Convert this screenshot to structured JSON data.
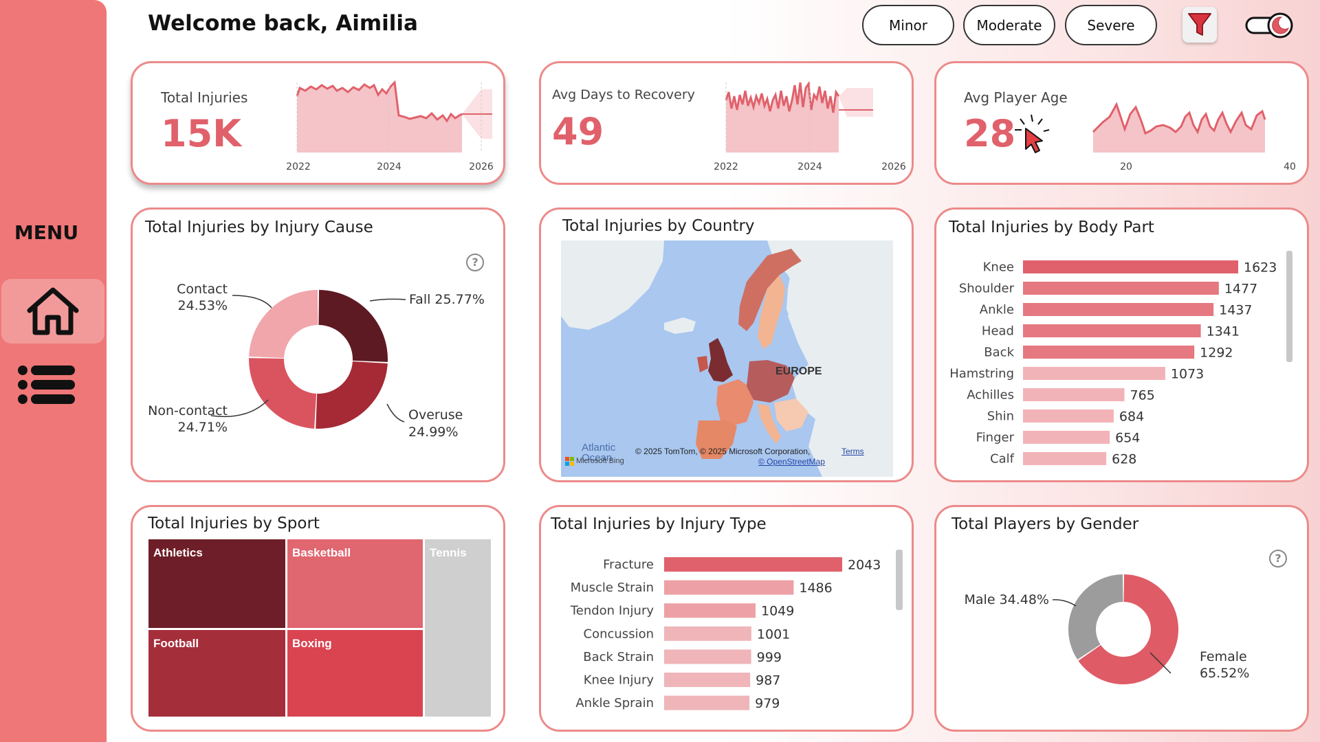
{
  "sidebar": {
    "menu_label": "MENU",
    "home_icon": "home-icon",
    "list_icon": "list-icon"
  },
  "header": {
    "welcome": "Welcome back, Aimilia",
    "severity_buttons": [
      "Minor",
      "Moderate",
      "Severe"
    ],
    "filter_icon": "filter-icon",
    "toggle_icon": "dark-mode-toggle-icon"
  },
  "kpis": {
    "total_injuries": {
      "label": "Total Injuries",
      "value": "15K",
      "ticks": [
        "2022",
        "2024",
        "2026"
      ]
    },
    "avg_days": {
      "label": "Avg Days to Recovery",
      "value": "49",
      "ticks": [
        "2022",
        "2024",
        "2026"
      ]
    },
    "avg_age": {
      "label": "Avg Player Age",
      "value": "28",
      "ticks": [
        "20",
        "40"
      ]
    }
  },
  "injury_cause": {
    "title": "Total Injuries by Injury Cause",
    "slices": [
      {
        "name": "Fall",
        "pct": 25.77,
        "label": "Fall 25.77%",
        "color": "#5e1a22"
      },
      {
        "name": "Overuse",
        "pct": 24.99,
        "label": "Overuse",
        "sub": "24.99%",
        "color": "#a52a36"
      },
      {
        "name": "Non-contact",
        "pct": 24.71,
        "label": "Non-contact",
        "sub": "24.71%",
        "color": "#d9545f"
      },
      {
        "name": "Contact",
        "pct": 24.53,
        "label": "Contact",
        "sub": "24.53%",
        "color": "#f0a6ab"
      }
    ]
  },
  "country": {
    "title": "Total Injuries by Country",
    "map_labels": {
      "europe": "EUROPE",
      "ocean": "Atlantic Ocean"
    },
    "credits": {
      "bing": "Microsoft Bing",
      "copyright": "© 2025 TomTom, © 2025 Microsoft Corporation,",
      "terms": "Terms",
      "osm": "© OpenStreetMap"
    }
  },
  "body_part": {
    "title": "Total Injuries by Body Part",
    "bars": [
      {
        "label": "Knee",
        "value": 1623
      },
      {
        "label": "Shoulder",
        "value": 1477
      },
      {
        "label": "Ankle",
        "value": 1437
      },
      {
        "label": "Head",
        "value": 1341
      },
      {
        "label": "Back",
        "value": 1292
      },
      {
        "label": "Hamstring",
        "value": 1073
      },
      {
        "label": "Achilles",
        "value": 765
      },
      {
        "label": "Shin",
        "value": 684
      },
      {
        "label": "Finger",
        "value": 654
      },
      {
        "label": "Calf",
        "value": 628
      }
    ]
  },
  "sport": {
    "title": "Total Injuries by Sport",
    "cells": [
      {
        "label": "Athletics",
        "color": "#6e1e28"
      },
      {
        "label": "Basketball",
        "color": "#e06670"
      },
      {
        "label": "Tennis",
        "color": "#cfcfcf"
      },
      {
        "label": "Football",
        "color": "#a52e3b"
      },
      {
        "label": "Boxing",
        "color": "#d94450"
      }
    ]
  },
  "injury_type": {
    "title": "Total Injuries by Injury Type",
    "bars": [
      {
        "label": "Fracture",
        "value": 2043
      },
      {
        "label": "Muscle Strain",
        "value": 1486
      },
      {
        "label": "Tendon Injury",
        "value": 1049
      },
      {
        "label": "Concussion",
        "value": 1001
      },
      {
        "label": "Back Strain",
        "value": 999
      },
      {
        "label": "Knee Injury",
        "value": 987
      },
      {
        "label": "Ankle Sprain",
        "value": 979
      }
    ]
  },
  "gender": {
    "title": "Total Players by Gender",
    "slices": [
      {
        "name": "Female",
        "pct": 65.52,
        "label": "Female",
        "sub": "65.52%",
        "color": "#df5b66"
      },
      {
        "name": "Male",
        "pct": 34.48,
        "label": "Male 34.48%",
        "color": "#9c9c9c"
      }
    ]
  },
  "help_icon": "help-icon",
  "cursor_icon": "click-cursor-icon"
}
